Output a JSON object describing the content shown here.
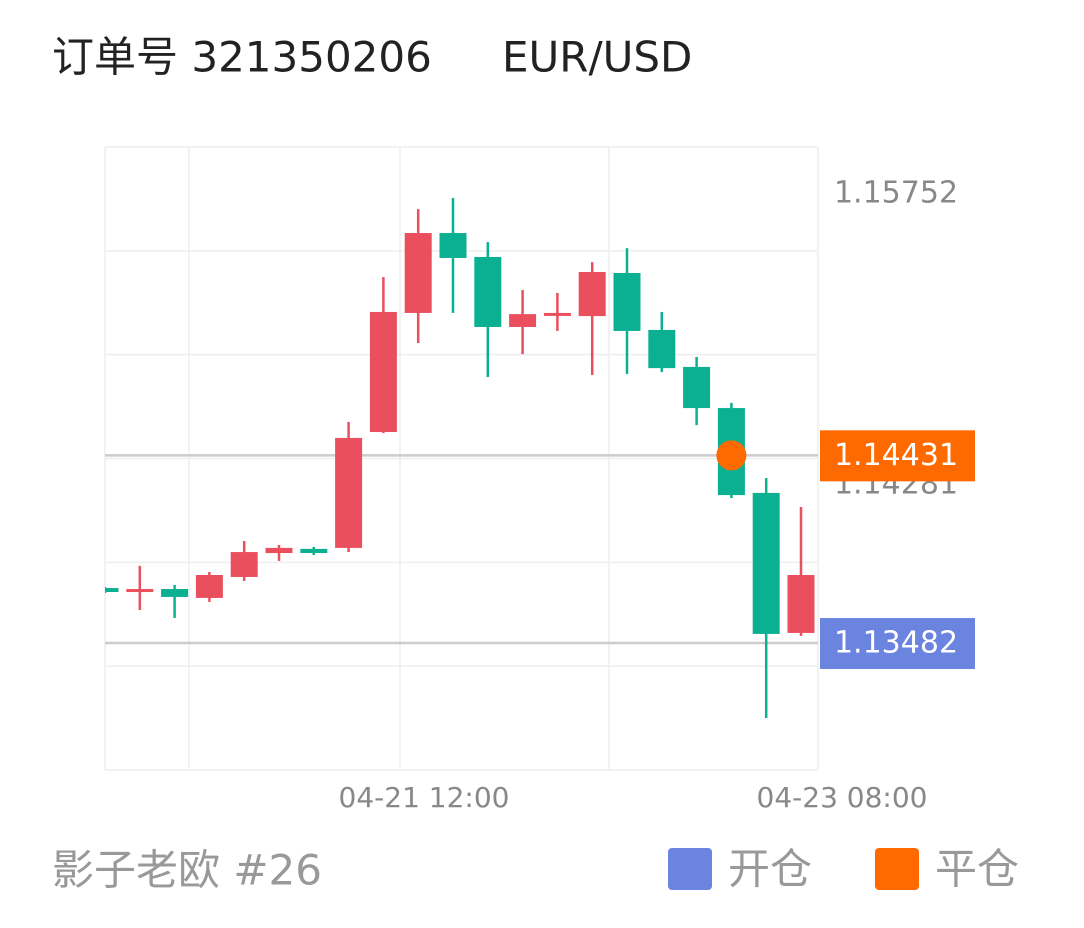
{
  "header": {
    "order": "订单号 321350206",
    "symbol": "EUR/USD"
  },
  "chart_data": {
    "type": "candlestick",
    "categories": [
      null,
      null,
      null,
      null,
      null,
      null,
      null,
      null,
      null,
      null,
      null,
      null,
      null,
      null,
      null,
      null,
      null,
      null,
      null,
      null,
      null
    ],
    "x_labels": [
      "04-21 12:00",
      "04-23 08:00"
    ],
    "open": [
      1.1376,
      1.1374,
      1.13755,
      1.1371,
      1.13816,
      1.13937,
      1.13958,
      1.13963,
      1.14549,
      1.15151,
      1.15555,
      1.15434,
      1.1508,
      1.1514,
      1.15135,
      1.15353,
      1.15065,
      1.14878,
      1.1467,
      1.14241,
      1.13533
    ],
    "high": [
      1.13765,
      1.13872,
      1.13776,
      1.13841,
      1.13998,
      1.13978,
      1.13968,
      1.146,
      1.15332,
      1.15676,
      1.15732,
      1.15509,
      1.15267,
      1.15252,
      1.15408,
      1.15479,
      1.15156,
      1.14928,
      1.14696,
      1.14316,
      1.1417
    ],
    "low": [
      1.13735,
      1.13649,
      1.13609,
      1.1369,
      1.13796,
      1.13897,
      1.13927,
      1.13942,
      1.14544,
      1.14999,
      1.15151,
      1.14827,
      1.14943,
      1.1506,
      1.14837,
      1.14842,
      1.14852,
      1.14584,
      1.14215,
      1.13103,
      1.13518
    ],
    "close": [
      1.1374,
      1.13755,
      1.13715,
      1.13826,
      1.13942,
      1.13963,
      1.13937,
      1.14519,
      1.15156,
      1.15555,
      1.15429,
      1.1508,
      1.15145,
      1.15151,
      1.15358,
      1.1506,
      1.14872,
      1.1467,
      1.1423,
      1.13528,
      1.13826
    ],
    "up_color": "#ea4f5e",
    "down_color": "#0bb092",
    "ylim": [
      1.1284,
      1.1599
    ],
    "yticks": [
      1.15752,
      1.14281
    ],
    "grid": true,
    "markers": [
      {
        "name": "开仓",
        "color": "#6b84e0",
        "value": 1.13482
      },
      {
        "name": "平仓",
        "color": "#ff6a00",
        "value": 1.14431
      }
    ]
  },
  "footer": "影子老欧 #26"
}
